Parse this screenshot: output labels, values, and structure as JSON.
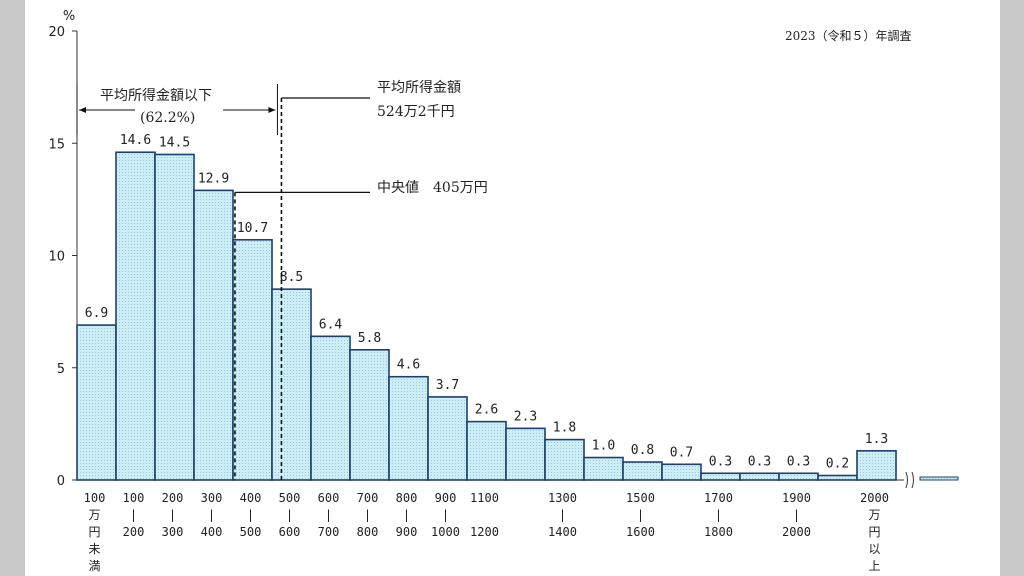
{
  "survey_note": "2023（令和５）年調査",
  "chart_data": {
    "type": "bar",
    "y_unit": "%",
    "ylim": [
      0,
      20
    ],
    "yticks": [
      0,
      5,
      10,
      15,
      20
    ],
    "categories": [
      [
        "100",
        "万",
        "円",
        "未",
        "満"
      ],
      [
        "100",
        "|",
        "200"
      ],
      [
        "200",
        "|",
        "300"
      ],
      [
        "300",
        "|",
        "400"
      ],
      [
        "400",
        "|",
        "500"
      ],
      [
        "500",
        "|",
        "600"
      ],
      [
        "600",
        "|",
        "700"
      ],
      [
        "700",
        "|",
        "800"
      ],
      [
        "800",
        "|",
        "900"
      ],
      [
        "900",
        "|",
        "1000"
      ],
      [
        "1100",
        "",
        "1200"
      ],
      [
        "",
        "",
        ""
      ],
      [
        "1300",
        "|",
        "1400"
      ],
      [
        "",
        "",
        ""
      ],
      [
        "1500",
        "|",
        "1600"
      ],
      [
        "",
        "",
        ""
      ],
      [
        "1700",
        "|",
        "1800"
      ],
      [
        "",
        "",
        ""
      ],
      [
        "1900",
        "|",
        "2000"
      ],
      [
        "",
        "",
        ""
      ],
      [
        "2000",
        "万",
        "円",
        "以",
        "上"
      ]
    ],
    "values": [
      6.9,
      14.6,
      14.5,
      12.9,
      10.7,
      8.5,
      6.4,
      5.8,
      4.6,
      3.7,
      2.6,
      2.3,
      1.8,
      1.0,
      0.8,
      0.7,
      0.3,
      0.3,
      0.3,
      0.2,
      1.3
    ],
    "value_labels": [
      "6.9",
      "14.6",
      "14.5",
      "12.9",
      "10.7",
      "8.5",
      "6.4",
      "5.8",
      "4.6",
      "3.7",
      "2.6",
      "2.3",
      "1.8",
      "1.0",
      "0.8",
      "0.7",
      "0.3",
      "0.3",
      "0.3",
      "0.2",
      "1.3"
    ],
    "bar_fill": "#cdeef7",
    "bar_stroke": "#1f3f6e",
    "annotations": {
      "below_mean_label": "平均所得金額以下",
      "below_mean_pct": "(62.2%)",
      "mean_label": "平均所得金額",
      "mean_value": "524万2千円",
      "median_label": "中央値　405万円",
      "mean_value_yen": 524.2,
      "median_value_yen": 405
    }
  }
}
